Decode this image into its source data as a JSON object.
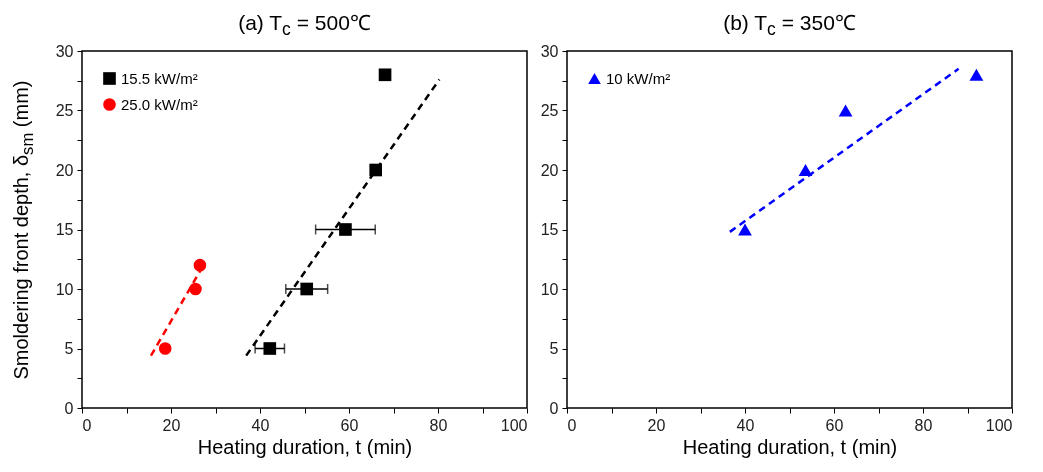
{
  "chart_data": [
    {
      "type": "scatter",
      "title": "(a) T$_{c}$ = 500℃",
      "xlabel": "Heating duration, t (min)",
      "ylabel": "Smoldering front depth, δ$_{sm}$ (mm)",
      "legend": "top left",
      "grid": false,
      "xlim": [
        0,
        100
      ],
      "xticks": [
        0,
        {
          "value": 10,
          "label": null
        },
        20,
        {
          "value": 30,
          "label": null
        },
        40,
        {
          "value": 50,
          "label": null
        },
        60,
        {
          "value": 70,
          "label": null
        },
        80,
        {
          "value": 90,
          "label": null
        },
        100
      ],
      "ylim": [
        0,
        30
      ],
      "yticks": [
        0,
        {
          "value": 2.5,
          "label": null
        },
        5,
        {
          "value": 7.5,
          "label": null
        },
        10,
        {
          "value": 12.5,
          "label": null
        },
        15,
        {
          "value": 17.5,
          "label": null
        },
        20,
        {
          "value": 22.5,
          "label": null
        },
        25,
        {
          "value": 27.5,
          "label": null
        },
        30
      ],
      "series": [
        {
          "name": "15.5 kW/m²",
          "color": "#000000",
          "marker": "square",
          "x": [
            42.2,
            50.5,
            59.2,
            66.0,
            68.1
          ],
          "values": [
            5,
            10,
            15,
            20,
            28
          ],
          "xerrors": [
            3.3,
            4.7,
            6.7,
            null,
            null
          ]
        },
        {
          "name": "25.0 kW/m²",
          "color": "#ff0000",
          "marker": "circle",
          "x": [
            18.7,
            25.5,
            26.5
          ],
          "values": [
            5,
            10,
            12
          ]
        },
        {
          "type": "line",
          "color": "#000000",
          "line_style": "dashed",
          "marker": "none",
          "x": [
            36.9,
            80.3
          ],
          "values": [
            4.4,
            27.6
          ]
        },
        {
          "type": "line",
          "color": "#ff0000",
          "line_style": "dashed",
          "marker": "none",
          "x": [
            15.5,
            27.3
          ],
          "values": [
            4.4,
            12.0
          ]
        }
      ]
    },
    {
      "type": "scatter",
      "title": "(b) T$_{c}$ = 350℃",
      "xlabel": "Heating duration, t (min)",
      "legend": "top left",
      "grid": false,
      "xlim": [
        0,
        100
      ],
      "xticks": [
        0,
        {
          "value": 10,
          "label": null
        },
        20,
        {
          "value": 30,
          "label": null
        },
        40,
        {
          "value": 50,
          "label": null
        },
        60,
        {
          "value": 70,
          "label": null
        },
        80,
        {
          "value": 90,
          "label": null
        },
        100
      ],
      "ylim": [
        0,
        30
      ],
      "yticks": [
        0,
        {
          "value": 2.5,
          "label": null
        },
        5,
        {
          "value": 7.5,
          "label": null
        },
        10,
        {
          "value": 12.5,
          "label": null
        },
        15,
        {
          "value": 17.5,
          "label": null
        },
        20,
        {
          "value": 22.5,
          "label": null
        },
        25,
        {
          "value": 27.5,
          "label": null
        },
        30
      ],
      "series": [
        {
          "name": "10 kW/m²",
          "color": "#0000ff",
          "marker": "triangle",
          "x": [
            40.0,
            53.6,
            62.6,
            92.0
          ],
          "values": [
            15,
            20,
            25,
            28
          ]
        },
        {
          "type": "line",
          "color": "#0000ff",
          "line_style": "dashed",
          "marker": "none",
          "x": [
            36.6,
            88.0
          ],
          "values": [
            14.8,
            28.5
          ]
        }
      ]
    }
  ]
}
